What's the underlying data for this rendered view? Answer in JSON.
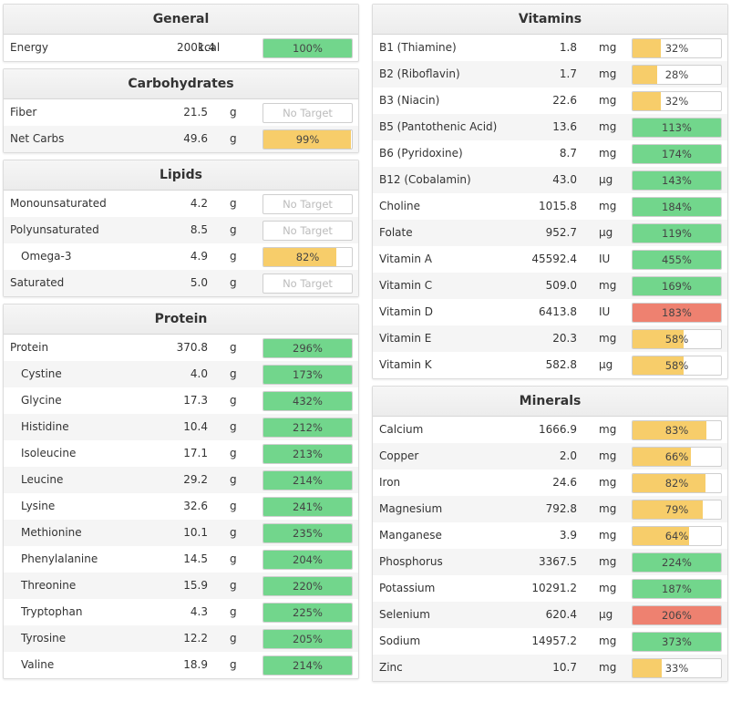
{
  "colors": {
    "green": "#72d68c",
    "yellow": "#f7cd6a",
    "red": "#ee8170"
  },
  "general": {
    "title": "General",
    "rows": [
      {
        "name": "Energy",
        "amount": "2001.4",
        "unit": "kcal",
        "pct_label": "100%",
        "fill": 1.0,
        "color": "green"
      }
    ]
  },
  "carbohydrates": {
    "title": "Carbohydrates",
    "rows": [
      {
        "name": "Fiber",
        "amount": "21.5",
        "unit": "g",
        "pct_label": "No Target",
        "fill": 0,
        "color": "none"
      },
      {
        "name": "Net Carbs",
        "amount": "49.6",
        "unit": "g",
        "pct_label": "99%",
        "fill": 0.99,
        "color": "yellow"
      }
    ]
  },
  "lipids": {
    "title": "Lipids",
    "rows": [
      {
        "name": "Monounsaturated",
        "amount": "4.2",
        "unit": "g",
        "pct_label": "No Target",
        "fill": 0,
        "color": "none"
      },
      {
        "name": "Polyunsaturated",
        "amount": "8.5",
        "unit": "g",
        "pct_label": "No Target",
        "fill": 0,
        "color": "none"
      },
      {
        "name": "Omega-3",
        "amount": "4.9",
        "unit": "g",
        "pct_label": "82%",
        "fill": 0.82,
        "color": "yellow"
      },
      {
        "name": "Saturated",
        "amount": "5.0",
        "unit": "g",
        "pct_label": "No Target",
        "fill": 0,
        "color": "none"
      }
    ]
  },
  "protein": {
    "title": "Protein",
    "rows": [
      {
        "name": "Protein",
        "amount": "370.8",
        "unit": "g",
        "pct_label": "296%",
        "fill": 1.0,
        "color": "green"
      },
      {
        "name": "Cystine",
        "amount": "4.0",
        "unit": "g",
        "pct_label": "173%",
        "fill": 1.0,
        "color": "green"
      },
      {
        "name": "Glycine",
        "amount": "17.3",
        "unit": "g",
        "pct_label": "432%",
        "fill": 1.0,
        "color": "green"
      },
      {
        "name": "Histidine",
        "amount": "10.4",
        "unit": "g",
        "pct_label": "212%",
        "fill": 1.0,
        "color": "green"
      },
      {
        "name": "Isoleucine",
        "amount": "17.1",
        "unit": "g",
        "pct_label": "213%",
        "fill": 1.0,
        "color": "green"
      },
      {
        "name": "Leucine",
        "amount": "29.2",
        "unit": "g",
        "pct_label": "214%",
        "fill": 1.0,
        "color": "green"
      },
      {
        "name": "Lysine",
        "amount": "32.6",
        "unit": "g",
        "pct_label": "241%",
        "fill": 1.0,
        "color": "green"
      },
      {
        "name": "Methionine",
        "amount": "10.1",
        "unit": "g",
        "pct_label": "235%",
        "fill": 1.0,
        "color": "green"
      },
      {
        "name": "Phenylalanine",
        "amount": "14.5",
        "unit": "g",
        "pct_label": "204%",
        "fill": 1.0,
        "color": "green"
      },
      {
        "name": "Threonine",
        "amount": "15.9",
        "unit": "g",
        "pct_label": "220%",
        "fill": 1.0,
        "color": "green"
      },
      {
        "name": "Tryptophan",
        "amount": "4.3",
        "unit": "g",
        "pct_label": "225%",
        "fill": 1.0,
        "color": "green"
      },
      {
        "name": "Tyrosine",
        "amount": "12.2",
        "unit": "g",
        "pct_label": "205%",
        "fill": 1.0,
        "color": "green"
      },
      {
        "name": "Valine",
        "amount": "18.9",
        "unit": "g",
        "pct_label": "214%",
        "fill": 1.0,
        "color": "green"
      }
    ]
  },
  "vitamins": {
    "title": "Vitamins",
    "rows": [
      {
        "name": "B1 (Thiamine)",
        "amount": "1.8",
        "unit": "mg",
        "pct_label": "32%",
        "fill": 0.32,
        "color": "yellow"
      },
      {
        "name": "B2 (Riboflavin)",
        "amount": "1.7",
        "unit": "mg",
        "pct_label": "28%",
        "fill": 0.28,
        "color": "yellow"
      },
      {
        "name": "B3 (Niacin)",
        "amount": "22.6",
        "unit": "mg",
        "pct_label": "32%",
        "fill": 0.32,
        "color": "yellow"
      },
      {
        "name": "B5 (Pantothenic Acid)",
        "amount": "13.6",
        "unit": "mg",
        "pct_label": "113%",
        "fill": 1.0,
        "color": "green"
      },
      {
        "name": "B6 (Pyridoxine)",
        "amount": "8.7",
        "unit": "mg",
        "pct_label": "174%",
        "fill": 1.0,
        "color": "green"
      },
      {
        "name": "B12 (Cobalamin)",
        "amount": "43.0",
        "unit": "µg",
        "pct_label": "143%",
        "fill": 1.0,
        "color": "green"
      },
      {
        "name": "Choline",
        "amount": "1015.8",
        "unit": "mg",
        "pct_label": "184%",
        "fill": 1.0,
        "color": "green"
      },
      {
        "name": "Folate",
        "amount": "952.7",
        "unit": "µg",
        "pct_label": "119%",
        "fill": 1.0,
        "color": "green"
      },
      {
        "name": "Vitamin A",
        "amount": "45592.4",
        "unit": "IU",
        "pct_label": "455%",
        "fill": 1.0,
        "color": "green"
      },
      {
        "name": "Vitamin C",
        "amount": "509.0",
        "unit": "mg",
        "pct_label": "169%",
        "fill": 1.0,
        "color": "green"
      },
      {
        "name": "Vitamin D",
        "amount": "6413.8",
        "unit": "IU",
        "pct_label": "183%",
        "fill": 1.0,
        "color": "red"
      },
      {
        "name": "Vitamin E",
        "amount": "20.3",
        "unit": "mg",
        "pct_label": "58%",
        "fill": 0.58,
        "color": "yellow"
      },
      {
        "name": "Vitamin K",
        "amount": "582.8",
        "unit": "µg",
        "pct_label": "58%",
        "fill": 0.58,
        "color": "yellow"
      }
    ]
  },
  "minerals": {
    "title": "Minerals",
    "rows": [
      {
        "name": "Calcium",
        "amount": "1666.9",
        "unit": "mg",
        "pct_label": "83%",
        "fill": 0.83,
        "color": "yellow"
      },
      {
        "name": "Copper",
        "amount": "2.0",
        "unit": "mg",
        "pct_label": "66%",
        "fill": 0.66,
        "color": "yellow"
      },
      {
        "name": "Iron",
        "amount": "24.6",
        "unit": "mg",
        "pct_label": "82%",
        "fill": 0.82,
        "color": "yellow"
      },
      {
        "name": "Magnesium",
        "amount": "792.8",
        "unit": "mg",
        "pct_label": "79%",
        "fill": 0.79,
        "color": "yellow"
      },
      {
        "name": "Manganese",
        "amount": "3.9",
        "unit": "mg",
        "pct_label": "64%",
        "fill": 0.64,
        "color": "yellow"
      },
      {
        "name": "Phosphorus",
        "amount": "3367.5",
        "unit": "mg",
        "pct_label": "224%",
        "fill": 1.0,
        "color": "green"
      },
      {
        "name": "Potassium",
        "amount": "10291.2",
        "unit": "mg",
        "pct_label": "187%",
        "fill": 1.0,
        "color": "green"
      },
      {
        "name": "Selenium",
        "amount": "620.4",
        "unit": "µg",
        "pct_label": "206%",
        "fill": 1.0,
        "color": "red"
      },
      {
        "name": "Sodium",
        "amount": "14957.2",
        "unit": "mg",
        "pct_label": "373%",
        "fill": 1.0,
        "color": "green"
      },
      {
        "name": "Zinc",
        "amount": "10.7",
        "unit": "mg",
        "pct_label": "33%",
        "fill": 0.33,
        "color": "yellow"
      }
    ]
  }
}
